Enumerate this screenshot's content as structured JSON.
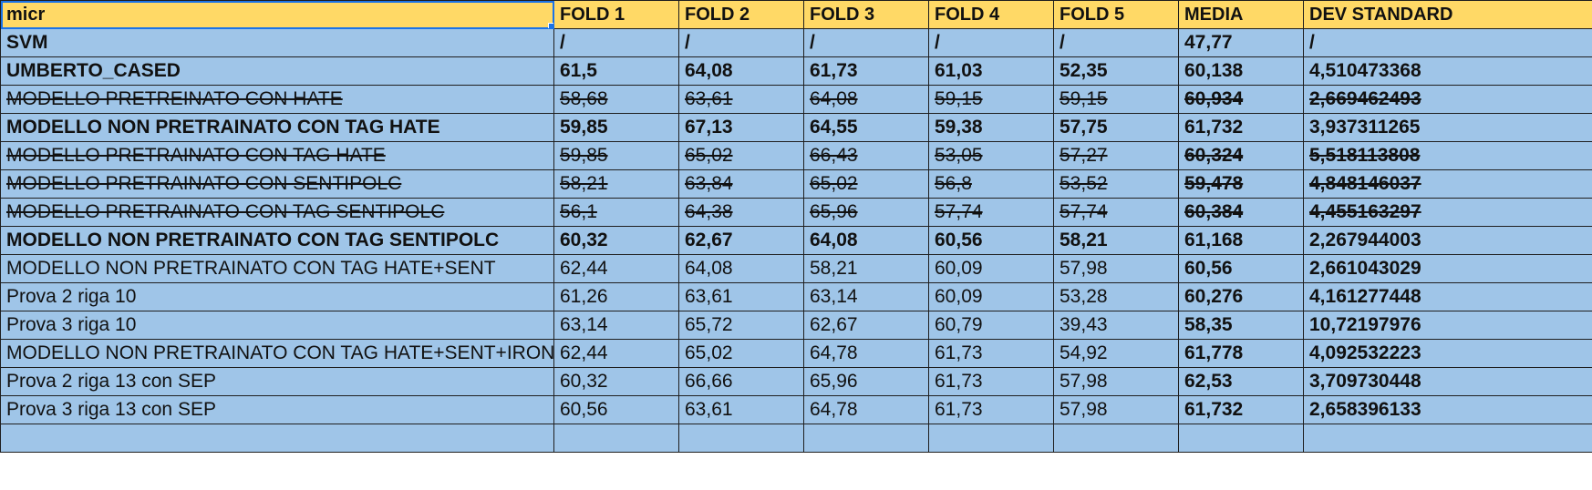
{
  "header": [
    "micr",
    "FOLD 1",
    "FOLD 2",
    "FOLD 3",
    "FOLD 4",
    "FOLD 5",
    "MEDIA",
    "DEV STANDARD"
  ],
  "rows": [
    {
      "cells": [
        "SVM",
        "/",
        "/",
        "/",
        "/",
        "/",
        "47,77",
        "/"
      ],
      "bold": true,
      "strike": false
    },
    {
      "cells": [
        "UMBERTO_CASED",
        "61,5",
        "64,08",
        "61,73",
        "61,03",
        "52,35",
        "60,138",
        "4,510473368"
      ],
      "bold": true,
      "strike": false
    },
    {
      "cells": [
        "MODELLO PRETREINATO CON HATE",
        "58,68",
        "63,61",
        "64,08",
        "59,15",
        "59,15",
        "60,934",
        "2,669462493"
      ],
      "bold": false,
      "strike": true
    },
    {
      "cells": [
        "MODELLO NON PRETRAINATO CON TAG HATE",
        "59,85",
        "67,13",
        "64,55",
        "59,38",
        "57,75",
        "61,732",
        "3,937311265"
      ],
      "bold": true,
      "strike": false
    },
    {
      "cells": [
        "MODELLO PRETRAINATO CON TAG HATE",
        "59,85",
        "65,02",
        "66,43",
        "53,05",
        "57,27",
        "60,324",
        "5,518113808"
      ],
      "bold": false,
      "strike": true
    },
    {
      "cells": [
        "MODELLO PRETRAINATO CON SENTIPOLC",
        "58,21",
        "63,84",
        "65,02",
        "56,8",
        "53,52",
        "59,478",
        "4,848146037"
      ],
      "bold": false,
      "strike": true
    },
    {
      "cells": [
        "MODELLO PRETRAINATO CON TAG SENTIPOLC",
        "56,1",
        "64,38",
        "65,96",
        "57,74",
        "57,74",
        "60,384",
        "4,455163297"
      ],
      "bold": false,
      "strike": true
    },
    {
      "cells": [
        "MODELLO NON PRETRAINATO CON TAG SENTIPOLC",
        "60,32",
        "62,67",
        "64,08",
        "60,56",
        "58,21",
        "61,168",
        "2,267944003"
      ],
      "bold": true,
      "strike": false
    },
    {
      "cells": [
        "MODELLO NON PRETRAINATO CON TAG HATE+SENT",
        "62,44",
        "64,08",
        "58,21",
        "60,09",
        "57,98",
        "60,56",
        "2,661043029"
      ],
      "bold": false,
      "strike": false
    },
    {
      "cells": [
        "Prova 2 riga 10",
        "61,26",
        "63,61",
        "63,14",
        "60,09",
        "53,28",
        "60,276",
        "4,161277448"
      ],
      "bold": false,
      "strike": false
    },
    {
      "cells": [
        "Prova 3 riga 10",
        "63,14",
        "65,72",
        "62,67",
        "60,79",
        "39,43",
        "58,35",
        "10,72197976"
      ],
      "bold": false,
      "strike": false
    },
    {
      "cells": [
        "MODELLO NON PRETRAINATO CON TAG HATE+SENT+IRONY",
        "62,44",
        "65,02",
        "64,78",
        "61,73",
        "54,92",
        "61,778",
        "4,092532223"
      ],
      "bold": false,
      "strike": false
    },
    {
      "cells": [
        "Prova 2 riga 13 con SEP",
        "60,32",
        "66,66",
        "65,96",
        "61,73",
        "57,98",
        "62,53",
        "3,709730448"
      ],
      "bold": false,
      "strike": false
    },
    {
      "cells": [
        "Prova 3 riga 13 con SEP",
        "60,56",
        "63,61",
        "64,78",
        "61,73",
        "57,98",
        "61,732",
        "2,658396133"
      ],
      "bold": false,
      "strike": false
    },
    {
      "cells": [
        "",
        "",
        "",
        "",
        "",
        "",
        "",
        ""
      ],
      "bold": false,
      "strike": false
    }
  ],
  "colors": {
    "header_bg": "#ffd966",
    "cell_bg": "#9fc5e8",
    "selection": "#1a73e8"
  }
}
